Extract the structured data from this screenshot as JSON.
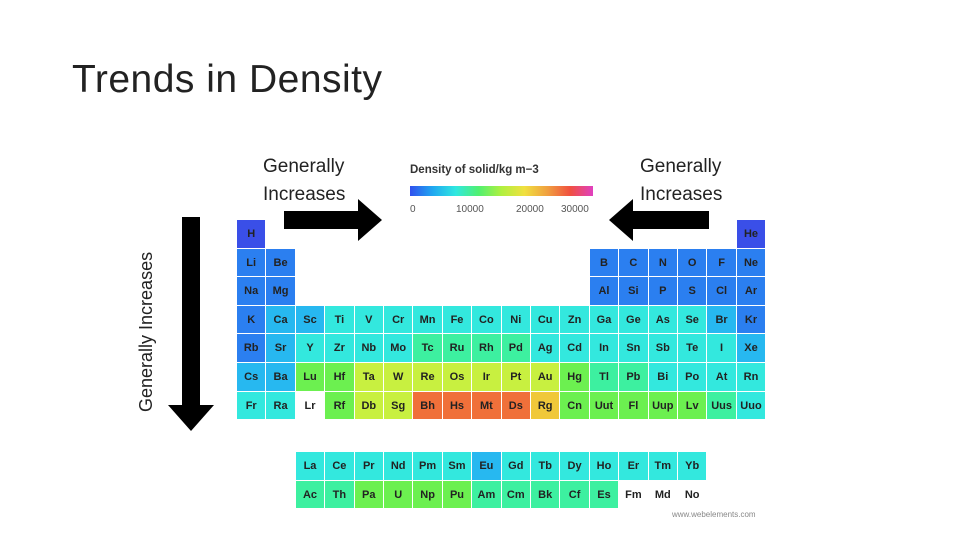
{
  "slide": {
    "title": "Trends in Density",
    "label_top_left": [
      "Generally",
      "Increases"
    ],
    "label_top_right": [
      "Generally",
      "Increases"
    ],
    "label_vertical": "Generally Increases"
  },
  "legend": {
    "title": "Density of solid/kg m−3",
    "ticks": [
      "0",
      "10000",
      "20000",
      "30000"
    ]
  },
  "credit": "www.webelements.com",
  "colors": {
    "low": "#3050ee",
    "mid": "#30e8e0",
    "high": "#f05040",
    "none": "#ffffff"
  },
  "elements": [
    {
      "s": "H",
      "r": 1,
      "c": 1,
      "k": "b0"
    },
    {
      "s": "He",
      "r": 1,
      "c": 18,
      "k": "b0"
    },
    {
      "s": "Li",
      "r": 2,
      "c": 1,
      "k": "b1"
    },
    {
      "s": "Be",
      "r": 2,
      "c": 2,
      "k": "b1"
    },
    {
      "s": "B",
      "r": 2,
      "c": 13,
      "k": "b1"
    },
    {
      "s": "C",
      "r": 2,
      "c": 14,
      "k": "b1"
    },
    {
      "s": "N",
      "r": 2,
      "c": 15,
      "k": "b1"
    },
    {
      "s": "O",
      "r": 2,
      "c": 16,
      "k": "b1"
    },
    {
      "s": "F",
      "r": 2,
      "c": 17,
      "k": "b1"
    },
    {
      "s": "Ne",
      "r": 2,
      "c": 18,
      "k": "b1"
    },
    {
      "s": "Na",
      "r": 3,
      "c": 1,
      "k": "b1"
    },
    {
      "s": "Mg",
      "r": 3,
      "c": 2,
      "k": "b1"
    },
    {
      "s": "Al",
      "r": 3,
      "c": 13,
      "k": "b1"
    },
    {
      "s": "Si",
      "r": 3,
      "c": 14,
      "k": "b1"
    },
    {
      "s": "P",
      "r": 3,
      "c": 15,
      "k": "b1"
    },
    {
      "s": "S",
      "r": 3,
      "c": 16,
      "k": "b1"
    },
    {
      "s": "Cl",
      "r": 3,
      "c": 17,
      "k": "b1"
    },
    {
      "s": "Ar",
      "r": 3,
      "c": 18,
      "k": "b1"
    },
    {
      "s": "K",
      "r": 4,
      "c": 1,
      "k": "b1"
    },
    {
      "s": "Ca",
      "r": 4,
      "c": 2,
      "k": "b2"
    },
    {
      "s": "Sc",
      "r": 4,
      "c": 3,
      "k": "b2"
    },
    {
      "s": "Ti",
      "r": 4,
      "c": 4,
      "k": "b3"
    },
    {
      "s": "V",
      "r": 4,
      "c": 5,
      "k": "b3"
    },
    {
      "s": "Cr",
      "r": 4,
      "c": 6,
      "k": "b3"
    },
    {
      "s": "Mn",
      "r": 4,
      "c": 7,
      "k": "b3"
    },
    {
      "s": "Fe",
      "r": 4,
      "c": 8,
      "k": "b3"
    },
    {
      "s": "Co",
      "r": 4,
      "c": 9,
      "k": "b3"
    },
    {
      "s": "Ni",
      "r": 4,
      "c": 10,
      "k": "b3"
    },
    {
      "s": "Cu",
      "r": 4,
      "c": 11,
      "k": "b3"
    },
    {
      "s": "Zn",
      "r": 4,
      "c": 12,
      "k": "b3"
    },
    {
      "s": "Ga",
      "r": 4,
      "c": 13,
      "k": "b3"
    },
    {
      "s": "Ge",
      "r": 4,
      "c": 14,
      "k": "b3"
    },
    {
      "s": "As",
      "r": 4,
      "c": 15,
      "k": "b3"
    },
    {
      "s": "Se",
      "r": 4,
      "c": 16,
      "k": "b3"
    },
    {
      "s": "Br",
      "r": 4,
      "c": 17,
      "k": "b2"
    },
    {
      "s": "Kr",
      "r": 4,
      "c": 18,
      "k": "b1"
    },
    {
      "s": "Rb",
      "r": 5,
      "c": 1,
      "k": "b1"
    },
    {
      "s": "Sr",
      "r": 5,
      "c": 2,
      "k": "b2"
    },
    {
      "s": "Y",
      "r": 5,
      "c": 3,
      "k": "b3"
    },
    {
      "s": "Zr",
      "r": 5,
      "c": 4,
      "k": "b3"
    },
    {
      "s": "Nb",
      "r": 5,
      "c": 5,
      "k": "b3"
    },
    {
      "s": "Mo",
      "r": 5,
      "c": 6,
      "k": "b3"
    },
    {
      "s": "Tc",
      "r": 5,
      "c": 7,
      "k": "b4"
    },
    {
      "s": "Ru",
      "r": 5,
      "c": 8,
      "k": "b4"
    },
    {
      "s": "Rh",
      "r": 5,
      "c": 9,
      "k": "b4"
    },
    {
      "s": "Pd",
      "r": 5,
      "c": 10,
      "k": "b4"
    },
    {
      "s": "Ag",
      "r": 5,
      "c": 11,
      "k": "b3"
    },
    {
      "s": "Cd",
      "r": 5,
      "c": 12,
      "k": "b3"
    },
    {
      "s": "In",
      "r": 5,
      "c": 13,
      "k": "b3"
    },
    {
      "s": "Sn",
      "r": 5,
      "c": 14,
      "k": "b3"
    },
    {
      "s": "Sb",
      "r": 5,
      "c": 15,
      "k": "b3"
    },
    {
      "s": "Te",
      "r": 5,
      "c": 16,
      "k": "b3"
    },
    {
      "s": "I",
      "r": 5,
      "c": 17,
      "k": "b3"
    },
    {
      "s": "Xe",
      "r": 5,
      "c": 18,
      "k": "b2"
    },
    {
      "s": "Cs",
      "r": 6,
      "c": 1,
      "k": "b2"
    },
    {
      "s": "Ba",
      "r": 6,
      "c": 2,
      "k": "b2"
    },
    {
      "s": "Lu",
      "r": 6,
      "c": 3,
      "k": "b5"
    },
    {
      "s": "Hf",
      "r": 6,
      "c": 4,
      "k": "b5"
    },
    {
      "s": "Ta",
      "r": 6,
      "c": 5,
      "k": "b6"
    },
    {
      "s": "W",
      "r": 6,
      "c": 6,
      "k": "b6"
    },
    {
      "s": "Re",
      "r": 6,
      "c": 7,
      "k": "b6"
    },
    {
      "s": "Os",
      "r": 6,
      "c": 8,
      "k": "b6"
    },
    {
      "s": "Ir",
      "r": 6,
      "c": 9,
      "k": "b6"
    },
    {
      "s": "Pt",
      "r": 6,
      "c": 10,
      "k": "b6"
    },
    {
      "s": "Au",
      "r": 6,
      "c": 11,
      "k": "b6"
    },
    {
      "s": "Hg",
      "r": 6,
      "c": 12,
      "k": "b5"
    },
    {
      "s": "Tl",
      "r": 6,
      "c": 13,
      "k": "b4"
    },
    {
      "s": "Pb",
      "r": 6,
      "c": 14,
      "k": "b4"
    },
    {
      "s": "Bi",
      "r": 6,
      "c": 15,
      "k": "b3"
    },
    {
      "s": "Po",
      "r": 6,
      "c": 16,
      "k": "b3"
    },
    {
      "s": "At",
      "r": 6,
      "c": 17,
      "k": "b3"
    },
    {
      "s": "Rn",
      "r": 6,
      "c": 18,
      "k": "b3"
    },
    {
      "s": "Fr",
      "r": 7,
      "c": 1,
      "k": "b3"
    },
    {
      "s": "Ra",
      "r": 7,
      "c": 2,
      "k": "b3"
    },
    {
      "s": "Lr",
      "r": 7,
      "c": 3,
      "k": "n"
    },
    {
      "s": "Rf",
      "r": 7,
      "c": 4,
      "k": "b5"
    },
    {
      "s": "Db",
      "r": 7,
      "c": 5,
      "k": "b6"
    },
    {
      "s": "Sg",
      "r": 7,
      "c": 6,
      "k": "b6"
    },
    {
      "s": "Bh",
      "r": 7,
      "c": 7,
      "k": "b8"
    },
    {
      "s": "Hs",
      "r": 7,
      "c": 8,
      "k": "b8"
    },
    {
      "s": "Mt",
      "r": 7,
      "c": 9,
      "k": "b8"
    },
    {
      "s": "Ds",
      "r": 7,
      "c": 10,
      "k": "b8"
    },
    {
      "s": "Rg",
      "r": 7,
      "c": 11,
      "k": "b7"
    },
    {
      "s": "Cn",
      "r": 7,
      "c": 12,
      "k": "b5"
    },
    {
      "s": "Uut",
      "r": 7,
      "c": 13,
      "k": "b5"
    },
    {
      "s": "Fl",
      "r": 7,
      "c": 14,
      "k": "b5"
    },
    {
      "s": "Uup",
      "r": 7,
      "c": 15,
      "k": "b5"
    },
    {
      "s": "Lv",
      "r": 7,
      "c": 16,
      "k": "b5"
    },
    {
      "s": "Uus",
      "r": 7,
      "c": 17,
      "k": "b4"
    },
    {
      "s": "Uuo",
      "r": 7,
      "c": 18,
      "k": "b3"
    },
    {
      "s": "La",
      "r": 9,
      "c": 3,
      "k": "b3"
    },
    {
      "s": "Ce",
      "r": 9,
      "c": 4,
      "k": "b3"
    },
    {
      "s": "Pr",
      "r": 9,
      "c": 5,
      "k": "b3"
    },
    {
      "s": "Nd",
      "r": 9,
      "c": 6,
      "k": "b3"
    },
    {
      "s": "Pm",
      "r": 9,
      "c": 7,
      "k": "b3"
    },
    {
      "s": "Sm",
      "r": 9,
      "c": 8,
      "k": "b3"
    },
    {
      "s": "Eu",
      "r": 9,
      "c": 9,
      "k": "b2"
    },
    {
      "s": "Gd",
      "r": 9,
      "c": 10,
      "k": "b3"
    },
    {
      "s": "Tb",
      "r": 9,
      "c": 11,
      "k": "b3"
    },
    {
      "s": "Dy",
      "r": 9,
      "c": 12,
      "k": "b3"
    },
    {
      "s": "Ho",
      "r": 9,
      "c": 13,
      "k": "b3"
    },
    {
      "s": "Er",
      "r": 9,
      "c": 14,
      "k": "b3"
    },
    {
      "s": "Tm",
      "r": 9,
      "c": 15,
      "k": "b3"
    },
    {
      "s": "Yb",
      "r": 9,
      "c": 16,
      "k": "b3"
    },
    {
      "s": "Ac",
      "r": 10,
      "c": 3,
      "k": "b4"
    },
    {
      "s": "Th",
      "r": 10,
      "c": 4,
      "k": "b4"
    },
    {
      "s": "Pa",
      "r": 10,
      "c": 5,
      "k": "b5"
    },
    {
      "s": "U",
      "r": 10,
      "c": 6,
      "k": "b5"
    },
    {
      "s": "Np",
      "r": 10,
      "c": 7,
      "k": "b5"
    },
    {
      "s": "Pu",
      "r": 10,
      "c": 8,
      "k": "b5"
    },
    {
      "s": "Am",
      "r": 10,
      "c": 9,
      "k": "b4"
    },
    {
      "s": "Cm",
      "r": 10,
      "c": 10,
      "k": "b4"
    },
    {
      "s": "Bk",
      "r": 10,
      "c": 11,
      "k": "b4"
    },
    {
      "s": "Cf",
      "r": 10,
      "c": 12,
      "k": "b4"
    },
    {
      "s": "Es",
      "r": 10,
      "c": 13,
      "k": "b4"
    },
    {
      "s": "Fm",
      "r": 10,
      "c": 14,
      "k": "n"
    },
    {
      "s": "Md",
      "r": 10,
      "c": 15,
      "k": "n"
    },
    {
      "s": "No",
      "r": 10,
      "c": 16,
      "k": "n"
    }
  ],
  "palette": {
    "b0": "#3a4fe8",
    "b1": "#2b7ff0",
    "b2": "#27b8f0",
    "b3": "#33e8de",
    "b4": "#3df0a0",
    "b5": "#6cf050",
    "b6": "#c8f040",
    "b7": "#f0c83a",
    "b8": "#f0703a",
    "n": "#ffffff"
  }
}
